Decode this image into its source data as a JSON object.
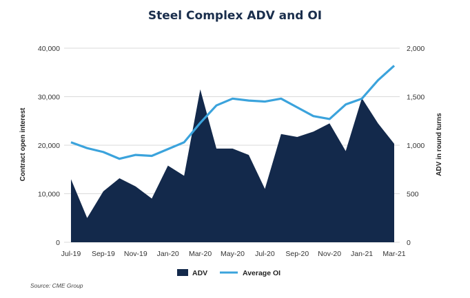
{
  "chart_data": {
    "type": "area+line",
    "title": "Steel Complex ADV and OI",
    "ylabel_left": "Contract open interest",
    "ylabel_right": "ADV in round turns",
    "ylim_left": [
      0,
      40000
    ],
    "ylim_right": [
      0,
      2000
    ],
    "yticks_left": [
      "0",
      "10,000",
      "20,000",
      "30,000",
      "40,000"
    ],
    "yticks_right": [
      "0",
      "500",
      "1,000",
      "1,500",
      "2,000"
    ],
    "x_tick_labels": [
      "Jul-19",
      "Sep-19",
      "Nov-19",
      "Jan-20",
      "Mar-20",
      "May-20",
      "Jul-20",
      "Sep-20",
      "Nov-20",
      "Jan-21",
      "Mar-21"
    ],
    "categories": [
      "Jul-19",
      "Aug-19",
      "Sep-19",
      "Oct-19",
      "Nov-19",
      "Dec-19",
      "Jan-20",
      "Feb-20",
      "Mar-20",
      "Apr-20",
      "May-20",
      "Jun-20",
      "Jul-20",
      "Aug-20",
      "Sep-20",
      "Oct-20",
      "Nov-20",
      "Dec-20",
      "Jan-21",
      "Feb-21",
      "Mar-21"
    ],
    "series": [
      {
        "name": "ADV",
        "kind": "area",
        "axis": "left",
        "color": "#13294b",
        "values": [
          13000,
          5000,
          10500,
          13200,
          11500,
          9000,
          15800,
          13700,
          31500,
          19300,
          19300,
          18000,
          11000,
          22300,
          21700,
          22800,
          24500,
          18800,
          29700,
          24500,
          20300
        ]
      },
      {
        "name": "Average OI",
        "kind": "line",
        "axis": "right",
        "color": "#3ba3dc",
        "values": [
          1030,
          970,
          930,
          860,
          900,
          890,
          960,
          1030,
          1230,
          1410,
          1480,
          1460,
          1450,
          1480,
          1390,
          1300,
          1270,
          1420,
          1480,
          1670,
          1820
        ]
      }
    ],
    "legend": {
      "placement": "bottom-center",
      "items": [
        "ADV",
        "Average OI"
      ]
    },
    "source": "Source: CME Group",
    "grid": true
  }
}
